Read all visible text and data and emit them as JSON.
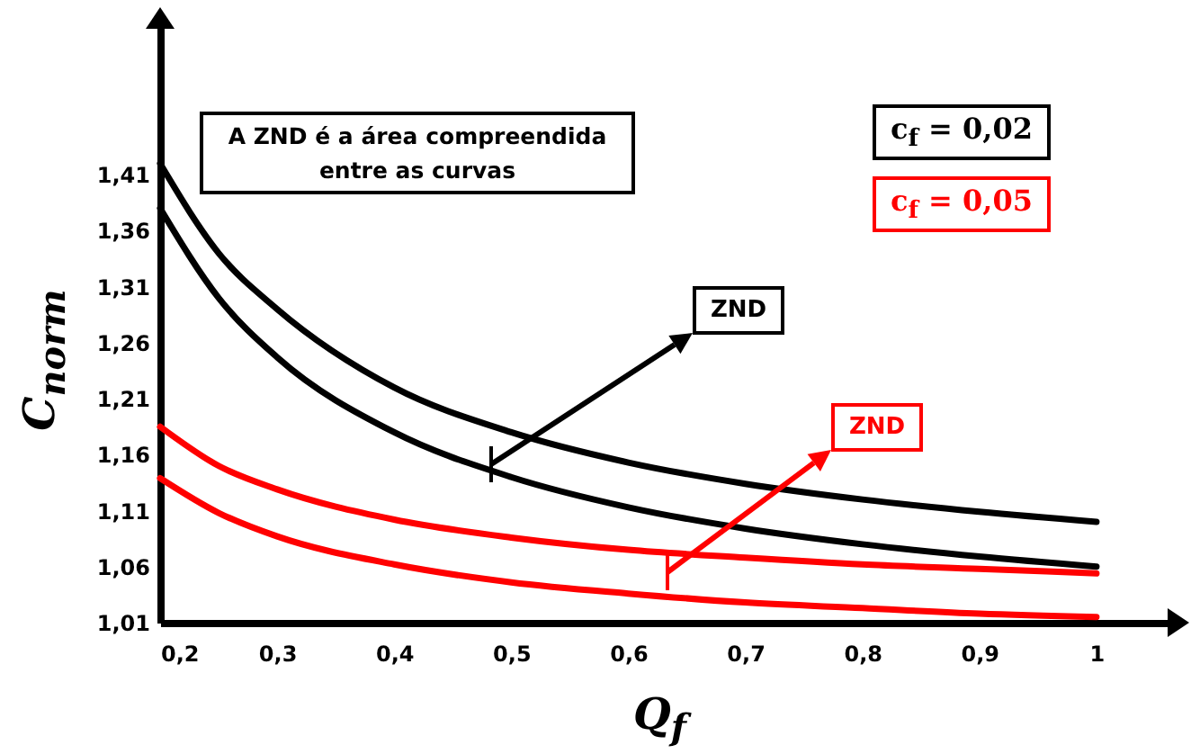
{
  "chart_data": {
    "type": "line",
    "xlabel": "Q$_{f}$",
    "ylabel": "C$_{norm}$",
    "legend": "top right",
    "x": [
      0.2,
      0.25,
      0.3,
      0.4,
      0.5,
      0.6,
      0.7,
      0.8,
      0.9,
      1
    ],
    "series": [
      {
        "name": "c$_{f}$ = 0,02",
        "color": "#000000",
        "values": [
          1.42,
          1.34,
          1.29,
          1.22,
          1.18,
          1.153,
          1.134,
          1.12,
          1.109,
          1.1
        ]
      },
      {
        "color": "#000000",
        "values": [
          1.38,
          1.3,
          1.247,
          1.18,
          1.14,
          1.113,
          1.094,
          1.08,
          1.069,
          1.06
        ]
      },
      {
        "name": "c$_{f}$ = 0,05",
        "color": "#ff0000",
        "values": [
          1.185,
          1.15,
          1.129,
          1.102,
          1.086,
          1.075,
          1.068,
          1.062,
          1.058,
          1.054
        ]
      },
      {
        "color": "#ff0000",
        "values": [
          1.139,
          1.108,
          1.087,
          1.062,
          1.046,
          1.036,
          1.028,
          1.023,
          1.018,
          1.015
        ]
      }
    ],
    "xlim": [
      0.2,
      1.07
    ],
    "ylim": [
      1.01,
      1.55
    ],
    "xticks": [
      {
        "value": 0.2,
        "label": "0,2"
      },
      {
        "value": 0.3,
        "label": "0,3"
      },
      {
        "value": 0.4,
        "label": "0,4"
      },
      {
        "value": 0.5,
        "label": "0,5"
      },
      {
        "value": 0.6,
        "label": "0,6"
      },
      {
        "value": 0.7,
        "label": "0,7"
      },
      {
        "value": 0.8,
        "label": "0,8"
      },
      {
        "value": 0.9,
        "label": "0,9"
      },
      1
    ],
    "yticks": [
      {
        "value": 1.01,
        "label": "1,01"
      },
      {
        "value": 1.06,
        "label": "1,06"
      },
      {
        "value": 1.11,
        "label": "1,11"
      },
      {
        "value": 1.16,
        "label": "1,16"
      },
      {
        "value": 1.21,
        "label": "1,21"
      },
      {
        "value": 1.26,
        "label": "1,26"
      },
      {
        "value": 1.31,
        "label": "1,31"
      },
      {
        "value": 1.36,
        "label": "1,36"
      },
      {
        "value": 1.41,
        "label": "1,41"
      }
    ],
    "annotations": [
      "A ZND é a área compreendida entre as curvas",
      "ZND",
      "ZND"
    ]
  }
}
